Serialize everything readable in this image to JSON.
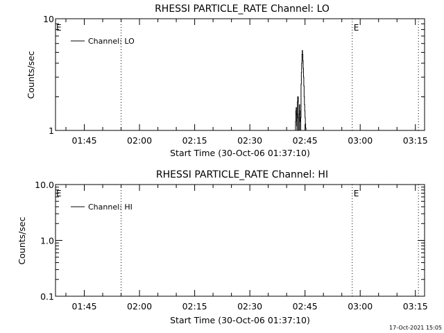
{
  "page": {
    "background": "#ffffff",
    "foreground": "#000000",
    "timestamp": "17-Oct-2021 15:05"
  },
  "chart_data": [
    {
      "id": "lo",
      "type": "line",
      "title": "RHESSI PARTICLE_RATE Channel: LO",
      "xlabel": "Start Time (30-Oct-06 01:37:10)",
      "ylabel": "Counts/sec",
      "xaxis_unit": "time HH:MM on 30-Oct-06",
      "xlim": [
        "01:37:10",
        "03:17:30"
      ],
      "x_ticks": [
        "01:45",
        "02:00",
        "02:15",
        "02:30",
        "02:45",
        "03:00",
        "03:15"
      ],
      "yscale": "log",
      "ylim": [
        1,
        10
      ],
      "y_tick_labels": [
        {
          "value": 1,
          "label": "1"
        },
        {
          "value": 10,
          "label": "10"
        }
      ],
      "y_minor_ticks": [
        2,
        3,
        4,
        5,
        6,
        7,
        8,
        9
      ],
      "legend": {
        "location": "top-left",
        "entries": [
          "Channel: LO"
        ]
      },
      "grid": false,
      "series": [
        {
          "name": "Channel: LO",
          "color": "#000000",
          "x": [
            "02:42:15",
            "02:42:20",
            "02:42:25",
            "02:42:30",
            "02:42:35",
            "02:42:40",
            "02:42:45",
            "02:42:50",
            "02:42:55",
            "02:43:00",
            "02:43:05",
            "02:43:10",
            "02:43:15",
            "02:43:20",
            "02:43:25",
            "02:43:30",
            "02:43:35",
            "02:43:40",
            "02:43:45",
            "02:43:50",
            "02:43:55",
            "02:44:00",
            "02:44:05",
            "02:44:10",
            "02:44:15",
            "02:44:20",
            "02:44:25",
            "02:44:30",
            "02:44:35",
            "02:44:40",
            "02:44:45",
            "02:44:50",
            "02:44:55",
            "02:45:00",
            "02:45:05",
            "02:45:10",
            "02:45:15",
            "02:45:20",
            "02:45:25",
            "02:45:30",
            "02:45:35",
            "02:45:40",
            "02:45:45",
            "02:45:50",
            "02:45:55",
            "02:46:00"
          ],
          "y": [
            1,
            1,
            1.2,
            1.5,
            1.6,
            1.4,
            1.1,
            1,
            1.8,
            2.0,
            2.0,
            1.3,
            1,
            1,
            1.4,
            1.7,
            1.5,
            1.2,
            1,
            1.3,
            2.6,
            3.3,
            4.0,
            4.8,
            5.2,
            4.8,
            4.2,
            3.6,
            3.0,
            2.5,
            2.0,
            1.7,
            1.5,
            1.3,
            1.15,
            1.05,
            1,
            1,
            1,
            1,
            1,
            1,
            1,
            1,
            1,
            1
          ]
        }
      ],
      "vertical_markers": [
        {
          "time": "01:55:00",
          "label": ""
        },
        {
          "time": "02:57:50",
          "label": "E"
        },
        {
          "time": "03:15:50",
          "label": ""
        }
      ],
      "corner_label": "E"
    },
    {
      "id": "hi",
      "type": "line",
      "title": "RHESSI PARTICLE_RATE Channel: HI",
      "xlabel": "Start Time (30-Oct-06 01:37:10)",
      "ylabel": "Counts/sec",
      "xaxis_unit": "time HH:MM on 30-Oct-06",
      "xlim": [
        "01:37:10",
        "03:17:30"
      ],
      "x_ticks": [
        "01:45",
        "02:00",
        "02:15",
        "02:30",
        "02:45",
        "03:00",
        "03:15"
      ],
      "yscale": "log",
      "ylim": [
        0.1,
        10
      ],
      "y_tick_labels": [
        {
          "value": 0.1,
          "label": "0.1"
        },
        {
          "value": 1,
          "label": "1.0"
        },
        {
          "value": 10,
          "label": "10.0"
        }
      ],
      "y_minor_ticks": [
        0.2,
        0.3,
        0.4,
        0.5,
        0.6,
        0.7,
        0.8,
        0.9,
        2,
        3,
        4,
        5,
        6,
        7,
        8,
        9
      ],
      "legend": {
        "location": "top-left",
        "entries": [
          "Channel: HI"
        ]
      },
      "grid": false,
      "series": [
        {
          "name": "Channel: HI",
          "color": "#000000",
          "x": [],
          "y": []
        }
      ],
      "vertical_markers": [
        {
          "time": "01:55:00",
          "label": ""
        },
        {
          "time": "02:57:50",
          "label": "E"
        },
        {
          "time": "03:15:50",
          "label": ""
        }
      ],
      "corner_label": "E"
    }
  ]
}
